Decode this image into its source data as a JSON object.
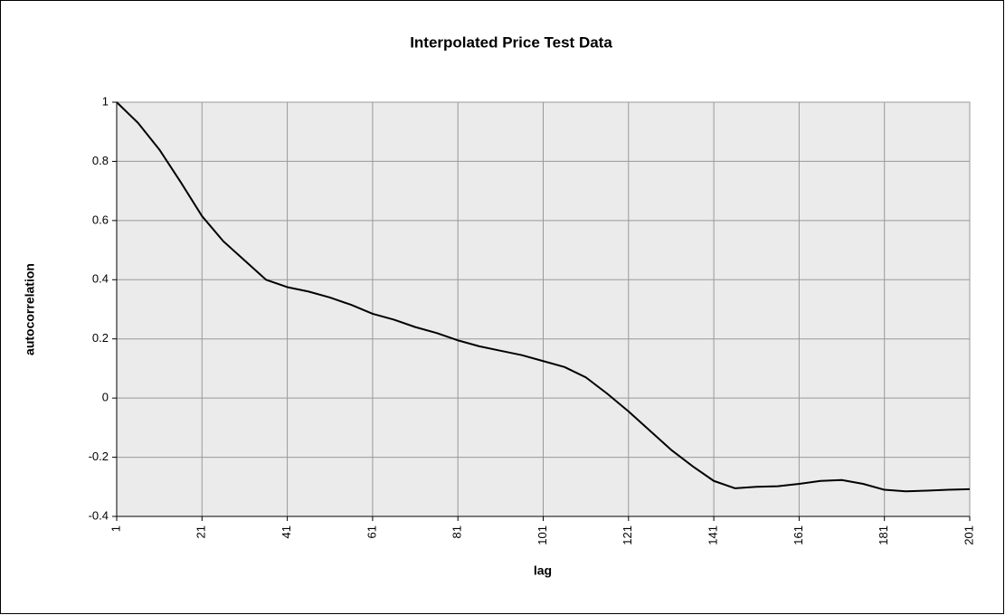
{
  "chart_data": {
    "type": "line",
    "title": "Interpolated Price Test Data",
    "x_label": "lag",
    "y_label": "autocorrelation",
    "x": [
      1,
      6,
      11,
      16,
      21,
      26,
      31,
      36,
      41,
      46,
      51,
      56,
      61,
      66,
      71,
      76,
      81,
      86,
      91,
      96,
      101,
      106,
      111,
      116,
      121,
      126,
      131,
      136,
      141,
      146,
      151,
      156,
      161,
      166,
      171,
      176,
      181,
      186,
      191,
      196,
      201
    ],
    "series": [
      {
        "name": "autocorrelation",
        "color": "#000000",
        "values": [
          1.0,
          0.93,
          0.84,
          0.73,
          0.615,
          0.53,
          0.465,
          0.4,
          0.375,
          0.36,
          0.34,
          0.315,
          0.285,
          0.265,
          0.24,
          0.22,
          0.195,
          0.175,
          0.16,
          0.145,
          0.125,
          0.105,
          0.07,
          0.015,
          -0.045,
          -0.11,
          -0.175,
          -0.23,
          -0.28,
          -0.305,
          -0.3,
          -0.298,
          -0.29,
          -0.28,
          -0.277,
          -0.29,
          -0.31,
          -0.315,
          -0.313,
          -0.31,
          -0.308
        ]
      }
    ],
    "xlim": [
      1,
      201
    ],
    "xticks": [
      1,
      21,
      41,
      61,
      81,
      101,
      121,
      141,
      161,
      181,
      201
    ],
    "ylim": [
      -0.4,
      1
    ],
    "yticks": [
      -0.4,
      -0.2,
      0,
      0.2,
      0.4,
      0.6,
      0.8,
      1
    ],
    "grid": true
  }
}
